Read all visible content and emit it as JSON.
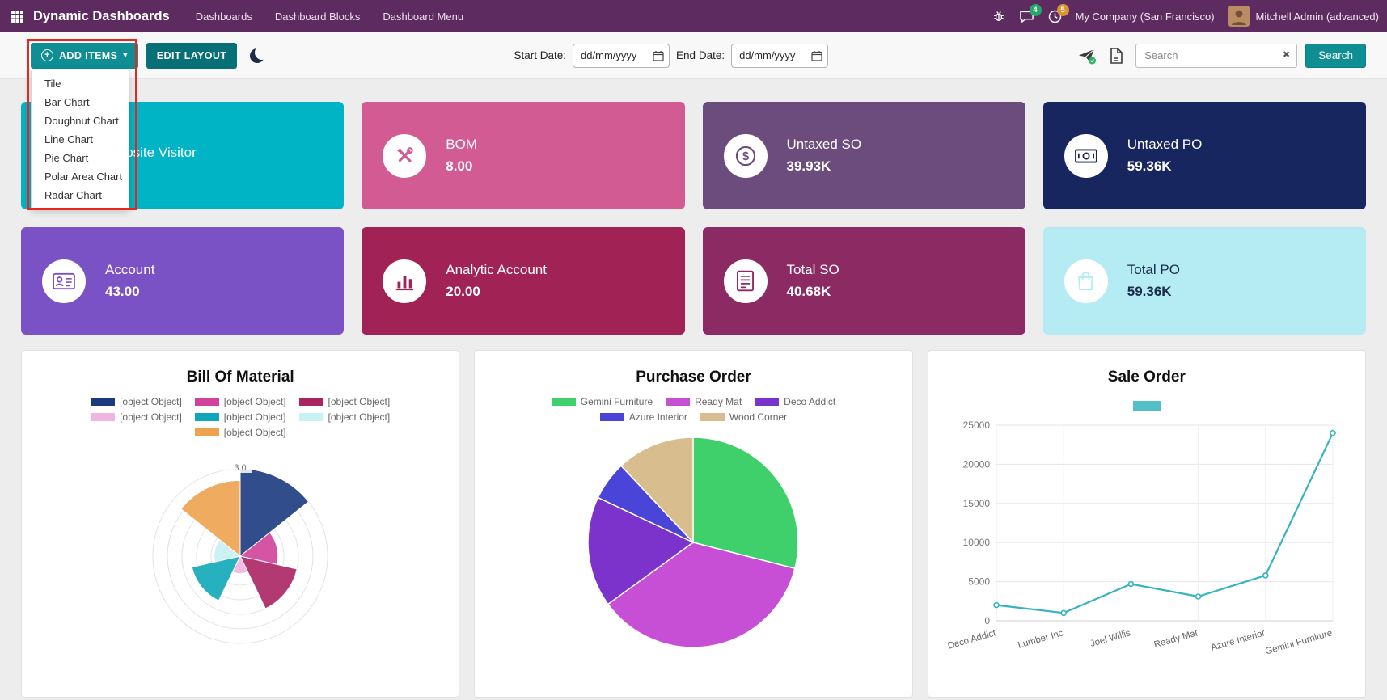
{
  "header": {
    "app_title": "Dynamic Dashboards",
    "nav": [
      "Dashboards",
      "Dashboard Blocks",
      "Dashboard Menu"
    ],
    "systray": {
      "messages_count": "4",
      "activities_count": "5",
      "company": "My Company (San Francisco)",
      "user": "Mitchell Admin (advanced)"
    }
  },
  "toolbar": {
    "add_items": "ADD ITEMS",
    "edit_layout": "EDIT LAYOUT",
    "dropdown_items": [
      "Tile",
      "Bar Chart",
      "Doughnut Chart",
      "Line Chart",
      "Pie Chart",
      "Polar Area Chart",
      "Radar Chart"
    ],
    "start_date_label": "Start Date:",
    "end_date_label": "End Date:",
    "date_placeholder": "dd/mm/yyyy",
    "search_placeholder": "Search",
    "search_button": "Search",
    "icons": {
      "plus": "+",
      "caret": "▾",
      "clear": "✖"
    }
  },
  "tiles": [
    {
      "label": "Website Visitor",
      "value": "",
      "color": "#00b3c5",
      "text_color": "#ffffff"
    },
    {
      "label": "BOM",
      "value": "8.00",
      "color": "#d15b92",
      "text_color": "#ffffff"
    },
    {
      "label": "Untaxed SO",
      "value": "39.93K",
      "color": "#6c4b7d",
      "text_color": "#ffffff"
    },
    {
      "label": "Untaxed PO",
      "value": "59.36K",
      "color": "#17265e",
      "text_color": "#ffffff"
    },
    {
      "label": "Account",
      "value": "43.00",
      "color": "#7b52c5",
      "text_color": "#ffffff"
    },
    {
      "label": "Analytic Account",
      "value": "20.00",
      "color": "#a12356",
      "text_color": "#ffffff"
    },
    {
      "label": "Total SO",
      "value": "40.68K",
      "color": "#8c2a63",
      "text_color": "#ffffff"
    },
    {
      "label": "Total PO",
      "value": "59.36K",
      "color": "#b5ebf3",
      "text_color": "#1a2b49"
    }
  ],
  "chart_data": [
    {
      "type": "polarArea",
      "title": "Bill Of Material",
      "labels": [
        "[object Object]",
        "[object Object]",
        "[object Object]",
        "[object Object]",
        "[object Object]",
        "[object Object]",
        "[object Object]"
      ],
      "values": [
        3.0,
        1.3,
        2.0,
        0.6,
        1.7,
        0.9,
        2.6
      ],
      "colors": [
        "#1b3a7e",
        "#d0429b",
        "#aa2462",
        "#f0b6e0",
        "#10a8b8",
        "#c8f1f4",
        "#eda24f"
      ],
      "rmax": 3.0,
      "rmax_label": "3.0",
      "grid": true,
      "legend_position": "top"
    },
    {
      "type": "pie",
      "title": "Purchase Order",
      "labels": [
        "Gemini Furniture",
        "Ready Mat",
        "Deco Addict",
        "Azure Interior",
        "Wood Corner"
      ],
      "values": [
        29,
        36,
        17,
        6,
        12
      ],
      "colors": [
        "#3fd06b",
        "#c74fd6",
        "#7c33cc",
        "#4b44d8",
        "#d8bd8e"
      ],
      "legend_position": "top"
    },
    {
      "type": "line",
      "title": "Sale Order",
      "categories": [
        "Deco Addict",
        "Lumber Inc",
        "Joel Willis",
        "Ready Mat",
        "Azure Interior",
        "Gemini Furniture"
      ],
      "values": [
        2000,
        1000,
        4700,
        3100,
        5800,
        24000
      ],
      "yticks": [
        0,
        5000,
        10000,
        15000,
        20000,
        25000
      ],
      "ylim": [
        0,
        25000
      ],
      "color": "#35b4bf",
      "grid": true,
      "legend_swatch": true
    }
  ],
  "colors": {
    "header_bg": "#5e2b60",
    "accent_teal": "#0f8e93",
    "annotation_red": "#e8251f"
  }
}
